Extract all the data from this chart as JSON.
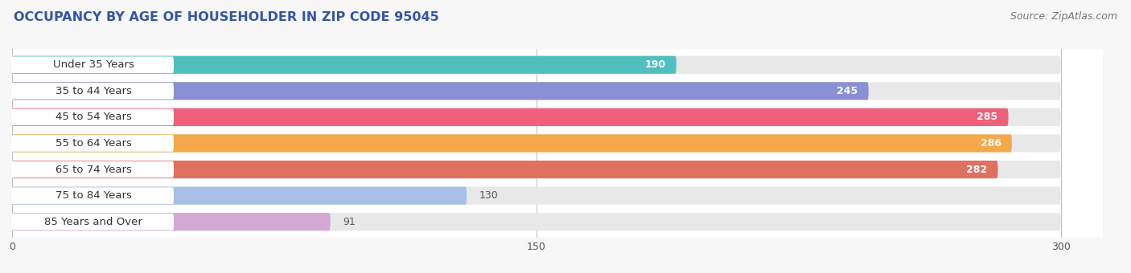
{
  "title": "OCCUPANCY BY AGE OF HOUSEHOLDER IN ZIP CODE 95045",
  "source": "Source: ZipAtlas.com",
  "categories": [
    "Under 35 Years",
    "35 to 44 Years",
    "45 to 54 Years",
    "55 to 64 Years",
    "65 to 74 Years",
    "75 to 84 Years",
    "85 Years and Over"
  ],
  "values": [
    190,
    245,
    285,
    286,
    282,
    130,
    91
  ],
  "bar_colors": [
    "#52BFBF",
    "#8B8FD4",
    "#F0607A",
    "#F5A84A",
    "#E07060",
    "#A8C0E8",
    "#D4A8D4"
  ],
  "bar_bg_colors": [
    "#EBEBEB",
    "#EBEBEB",
    "#EBEBEB",
    "#EBEBEB",
    "#EBEBEB",
    "#EBEBEB",
    "#EBEBEB"
  ],
  "xlim": [
    0,
    300
  ],
  "xticks": [
    0,
    150,
    300
  ],
  "title_fontsize": 11.5,
  "source_fontsize": 9,
  "label_fontsize": 9.5,
  "value_fontsize": 9,
  "background_color": "#ffffff",
  "fig_bg_color": "#f7f7f7"
}
